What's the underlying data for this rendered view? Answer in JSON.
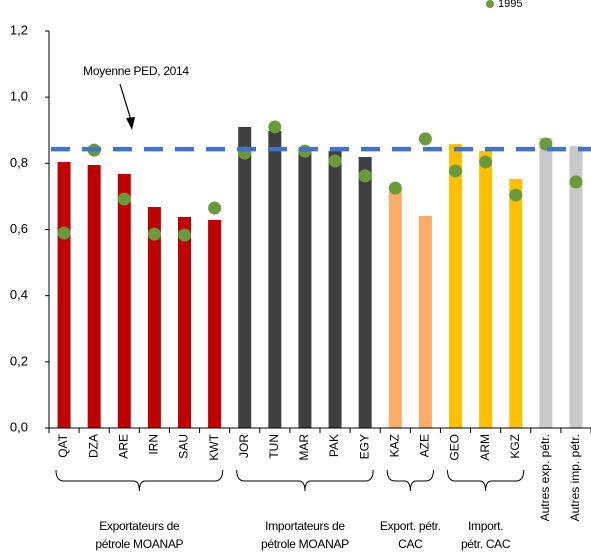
{
  "chart_data": {
    "type": "bar",
    "categories": [
      "QAT",
      "DZA",
      "ARE",
      "IRN",
      "SAU",
      "KWT",
      "JOR",
      "TUN",
      "MAR",
      "PAK",
      "EGY",
      "KAZ",
      "AZE",
      "GEO",
      "ARM",
      "KGZ",
      "Autres exp. pétr.",
      "Autres imp. pétr."
    ],
    "series": [
      {
        "type": "bar",
        "colors": [
          "#c00000",
          "#c00000",
          "#c00000",
          "#c00000",
          "#c00000",
          "#c00000",
          "#404040",
          "#404040",
          "#404040",
          "#404040",
          "#404040",
          "#f9ad66",
          "#f9ad66",
          "#ffc000",
          "#ffc000",
          "#ffc000",
          "#c9c9c9",
          "#c9c9c9"
        ],
        "values": [
          0.804,
          0.795,
          0.768,
          0.668,
          0.638,
          0.629,
          0.91,
          0.898,
          0.846,
          0.837,
          0.819,
          0.725,
          0.641,
          0.858,
          0.837,
          0.753,
          0.877,
          0.852
        ]
      },
      {
        "type": "scatter",
        "name": "1995",
        "color": "#6a9a3a",
        "values": [
          0.589,
          0.84,
          0.692,
          0.586,
          0.583,
          0.665,
          0.831,
          0.91,
          0.837,
          0.807,
          0.762,
          0.725,
          0.874,
          0.777,
          0.804,
          0.704,
          0.858,
          0.744
        ]
      }
    ],
    "reference_line": {
      "label": "Moyenne PED, 2014",
      "value": 0.843,
      "color": "#4472c4"
    },
    "groups": [
      {
        "label": [
          "Exportateurs de",
          "pétrole MOANAP"
        ]
      },
      {
        "label": [
          "Importateurs de",
          "pétrole MOANAP"
        ]
      },
      {
        "label": [
          "Export. pétr.",
          "CAC"
        ]
      },
      {
        "label": [
          "Import.",
          "pétr. CAC"
        ]
      }
    ],
    "ylim": [
      0,
      1.2
    ],
    "yticks": [
      {
        "value": 0,
        "label": "0,0"
      },
      {
        "value": 0.2,
        "label": "0,2"
      },
      {
        "value": 0.4,
        "label": "0,4"
      },
      {
        "value": 0.6,
        "label": "0,6"
      },
      {
        "value": 0.8,
        "label": "0,8"
      },
      {
        "value": 1.0,
        "label": "1,0"
      },
      {
        "value": 1.2,
        "label": "1,2"
      }
    ]
  }
}
